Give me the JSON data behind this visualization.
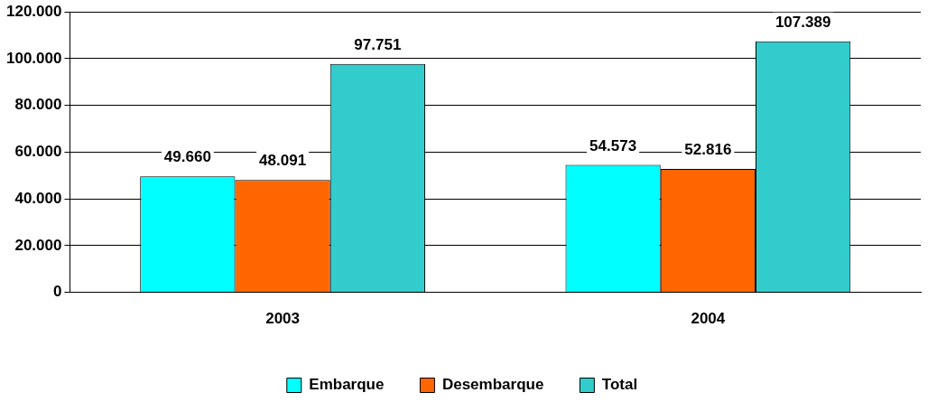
{
  "chart_data": {
    "type": "bar",
    "categories": [
      "2003",
      "2004"
    ],
    "series": [
      {
        "name": "Embarque",
        "color": "#00ffff",
        "values": [
          49660,
          54573
        ],
        "value_labels": [
          "49.660",
          "54.573"
        ]
      },
      {
        "name": "Desembarque",
        "color": "#ff6600",
        "values": [
          48091,
          52816
        ],
        "value_labels": [
          "48.091",
          "52.816"
        ]
      },
      {
        "name": "Total",
        "color": "#33cccc",
        "values": [
          97751,
          107389
        ],
        "value_labels": [
          "97.751",
          "107.389"
        ]
      }
    ],
    "ylim": [
      0,
      120000
    ],
    "yticks": [
      0,
      {
        "value": 20000,
        "label": "20.000"
      },
      {
        "value": 40000,
        "label": "40.000"
      },
      {
        "value": 60000,
        "label": "60.000"
      },
      {
        "value": 80000,
        "label": "80.000"
      },
      {
        "value": 100000,
        "label": "100.000"
      },
      {
        "value": 120000,
        "label": "120.000"
      }
    ],
    "grid": "y",
    "legend": "bottom"
  }
}
